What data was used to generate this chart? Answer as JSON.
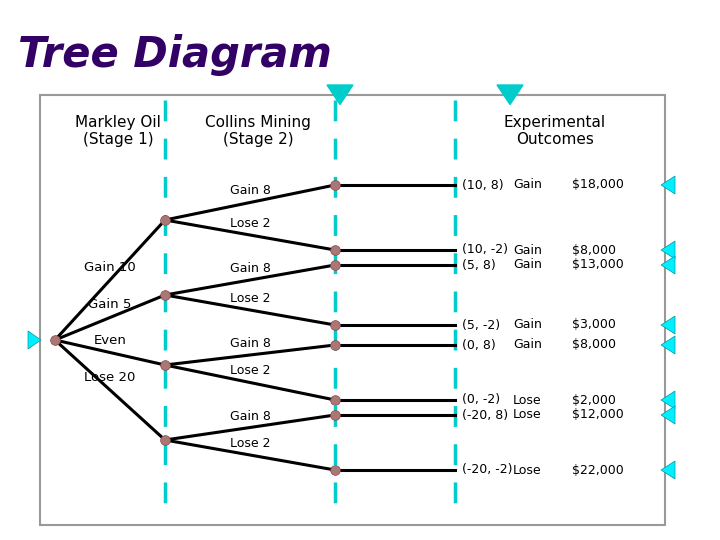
{
  "title": "Tree Diagram",
  "title_color": "#330066",
  "title_fontsize": 30,
  "title_fontweight": "bold",
  "bg_color": "#FFFFFF",
  "box_bg": "#FFFFFF",
  "box_edge_color": "#999999",
  "dashed_line_color": "#00CCCC",
  "node_color": "#AA7777",
  "node_edge_color": "#884444",
  "line_color": "#000000",
  "col1_header": "Markley Oil\n(Stage 1)",
  "col2_header": "Collins Mining\n(Stage 2)",
  "col3_header": "Experimental\nOutcomes",
  "stage1_labels": [
    "Gain 10",
    "Gain 5",
    "Even",
    "Lose 20"
  ],
  "outcomes": [
    [
      "(10, 8)",
      "Gain",
      "$18,000"
    ],
    [
      "(10, -2)",
      "Gain",
      "$8,000"
    ],
    [
      "(5, 8)",
      "Gain",
      "$13,000"
    ],
    [
      "(5, -2)",
      "Gain",
      "$3,000"
    ],
    [
      "(0, 8)",
      "Gain",
      "$8,000"
    ],
    [
      "(0, -2)",
      "Lose",
      "$2,000"
    ],
    [
      "(-20, 8)",
      "Lose",
      "$12,000"
    ],
    [
      "(-20, -2)",
      "Lose",
      "$22,000"
    ]
  ],
  "cyan_arrow_color": "#00EEFF",
  "down_arrow_color": "#00CCCC"
}
